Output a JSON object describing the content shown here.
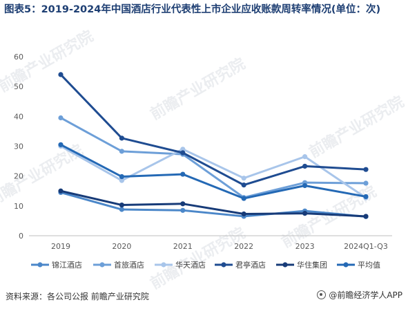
{
  "title": "图表5：2019-2024年中国酒店行业代表性上市企业应收账款周转率情况(单位：次)",
  "source": "资料来源：各公司公报 前瞻产业研究院",
  "brand": "@前瞻经济学人APP",
  "watermark": "前瞻产业研究院",
  "chart_data": {
    "type": "line",
    "categories": [
      "2019",
      "2020",
      "2021",
      "2022",
      "2023",
      "2024Q1-Q3"
    ],
    "ylim": [
      0,
      60
    ],
    "yticks": [
      0,
      10,
      20,
      30,
      40,
      50,
      60
    ],
    "grid": false,
    "legend_position": "bottom",
    "series": [
      {
        "name": "锦江酒店",
        "color": "#4b87c9",
        "values": [
          14.5,
          8.8,
          8.5,
          6.5,
          8.3,
          6.4
        ]
      },
      {
        "name": "首旅酒店",
        "color": "#6d9fd8",
        "values": [
          39.5,
          28.3,
          27.3,
          12.8,
          17.8,
          17.6
        ]
      },
      {
        "name": "华天酒店",
        "color": "#a8c5ea",
        "values": [
          30.0,
          18.5,
          29.0,
          19.3,
          26.5,
          12.7
        ]
      },
      {
        "name": "君亭酒店",
        "color": "#1f4c91",
        "values": [
          54.0,
          32.7,
          27.8,
          17.0,
          23.3,
          22.2
        ]
      },
      {
        "name": "华住集团",
        "color": "#173b78",
        "values": [
          15.0,
          10.3,
          10.7,
          7.3,
          7.5,
          6.5
        ]
      },
      {
        "name": "平均值",
        "color": "#2469b5",
        "values": [
          30.5,
          19.8,
          20.6,
          12.5,
          16.8,
          13.1
        ]
      }
    ]
  }
}
